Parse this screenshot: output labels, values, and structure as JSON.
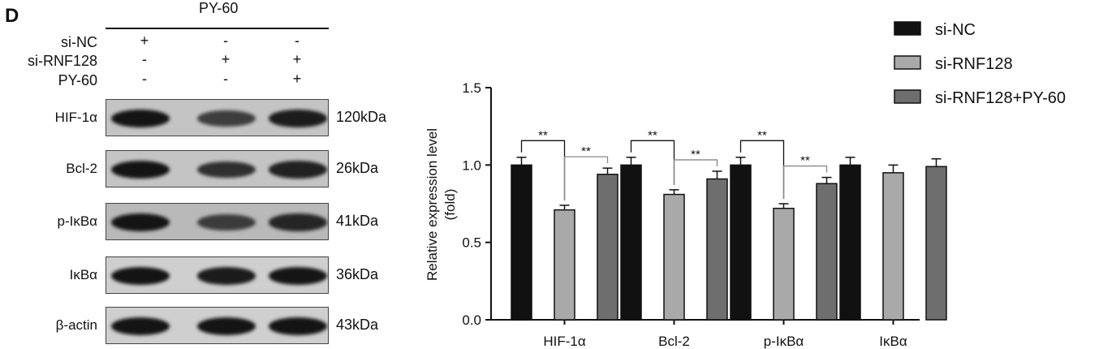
{
  "panel_label": "D",
  "western_blot": {
    "treatment_title": "PY-60",
    "conditions": [
      {
        "label": "si-NC",
        "signs": [
          "+",
          "-",
          "-"
        ]
      },
      {
        "label": "si-RNF128",
        "signs": [
          "-",
          "+",
          "+"
        ]
      },
      {
        "label": "PY-60",
        "signs": [
          "-",
          "-",
          "+"
        ]
      }
    ],
    "blots": [
      {
        "protein": "HIF-1α",
        "size": "120kDa",
        "intensity": [
          1.0,
          0.71,
          0.94
        ]
      },
      {
        "protein": "Bcl-2",
        "size": "26kDa",
        "intensity": [
          1.0,
          0.81,
          0.91
        ]
      },
      {
        "protein": "p-IκBα",
        "size": "41kDa",
        "intensity": [
          1.0,
          0.72,
          0.88
        ]
      },
      {
        "protein": "IκBα",
        "size": "36kDa",
        "intensity": [
          1.0,
          0.95,
          0.99
        ]
      },
      {
        "protein": "β-actin",
        "size": "43kDa",
        "intensity": [
          1.0,
          1.0,
          1.0
        ]
      }
    ]
  },
  "chart_data": {
    "type": "bar",
    "categories": [
      "HIF-1α",
      "Bcl-2",
      "p-IκBα",
      "IκBα"
    ],
    "series": [
      {
        "name": "si-NC",
        "values": [
          1.0,
          1.0,
          1.0,
          1.0
        ],
        "errors": [
          0.05,
          0.05,
          0.05,
          0.05
        ],
        "color": "#111111"
      },
      {
        "name": "si-RNF128",
        "values": [
          0.71,
          0.81,
          0.72,
          0.95
        ],
        "errors": [
          0.03,
          0.03,
          0.03,
          0.05
        ],
        "color": "#a9a9a9"
      },
      {
        "name": "si-RNF128+PY-60",
        "values": [
          0.94,
          0.91,
          0.88,
          0.99
        ],
        "errors": [
          0.04,
          0.05,
          0.04,
          0.05
        ],
        "color": "#6e6e6e"
      }
    ],
    "ylabel": "Relative expression level\n(fold)",
    "ylim": [
      0,
      1.5
    ],
    "yticks": [
      "0.0",
      "0.5",
      "1.0",
      "1.5"
    ],
    "significance": [
      {
        "category": "HIF-1α",
        "from": 0,
        "to": 1,
        "label": "**"
      },
      {
        "category": "HIF-1α",
        "from": 1,
        "to": 2,
        "label": "**"
      },
      {
        "category": "Bcl-2",
        "from": 0,
        "to": 1,
        "label": "**"
      },
      {
        "category": "Bcl-2",
        "from": 1,
        "to": 2,
        "label": "**"
      },
      {
        "category": "p-IκBα",
        "from": 0,
        "to": 1,
        "label": "**"
      },
      {
        "category": "p-IκBα",
        "from": 1,
        "to": 2,
        "label": "**"
      }
    ],
    "legend_position": "top-right",
    "grid": false
  }
}
